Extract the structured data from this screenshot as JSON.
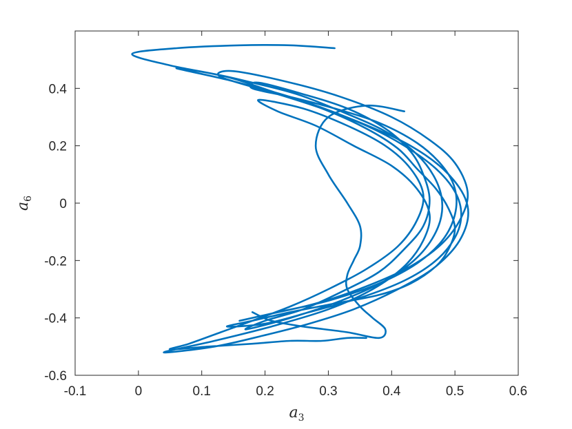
{
  "chart_data": {
    "type": "line",
    "title": "",
    "xlabel": "a",
    "xlabel_subscript": "3",
    "ylabel": "a",
    "ylabel_subscript": "6",
    "xlim": [
      -0.1,
      0.6
    ],
    "ylim": [
      -0.6,
      0.6
    ],
    "xticks": [
      -0.1,
      0,
      0.1,
      0.2,
      0.3,
      0.4,
      0.5,
      0.6
    ],
    "xtick_labels": [
      "-0.1",
      "0",
      "0.1",
      "0.2",
      "0.3",
      "0.4",
      "0.5",
      "0.6"
    ],
    "yticks": [
      -0.6,
      -0.4,
      -0.2,
      0,
      0.2,
      0.4
    ],
    "ytick_labels": [
      "-0.6",
      "-0.4",
      "-0.2",
      "0",
      "0.2",
      "0.4"
    ],
    "grid": false,
    "box": true,
    "line_color": "#0072BD",
    "series": [
      {
        "x": [
          0.31,
          0.24,
          0.16,
          0.06,
          -0.01,
          0.05,
          0.14,
          0.21,
          0.29,
          0.36,
          0.41,
          0.44,
          0.47,
          0.49,
          0.5,
          0.49,
          0.47,
          0.43,
          0.38,
          0.31,
          0.24,
          0.18,
          0.14,
          0.2,
          0.27,
          0.35,
          0.42,
          0.47,
          0.5,
          0.51,
          0.5,
          0.47,
          0.42,
          0.36,
          0.29,
          0.22,
          0.13,
          0.15,
          0.24,
          0.32,
          0.4,
          0.46,
          0.5,
          0.52,
          0.51,
          0.48,
          0.43,
          0.36,
          0.28,
          0.2,
          0.16,
          0.22,
          0.3,
          0.38,
          0.44,
          0.48,
          0.5,
          0.5,
          0.48,
          0.44,
          0.38,
          0.31,
          0.24,
          0.18,
          0.19,
          0.26,
          0.33,
          0.39,
          0.43,
          0.45,
          0.46,
          0.45,
          0.42,
          0.38,
          0.32,
          0.26,
          0.2,
          0.17,
          0.24,
          0.32,
          0.39,
          0.44,
          0.47,
          0.48,
          0.47,
          0.44,
          0.39,
          0.32,
          0.25,
          0.18,
          0.12,
          0.06,
          0.14,
          0.24,
          0.34,
          0.43,
          0.49,
          0.52,
          0.51,
          0.47,
          0.41,
          0.34,
          0.27,
          0.2,
          0.12,
          0.04,
          0.12,
          0.21,
          0.3,
          0.37,
          0.42,
          0.45,
          0.46,
          0.44,
          0.4,
          0.34,
          0.28,
          0.22,
          0.19,
          0.26,
          0.33,
          0.39,
          0.43,
          0.45,
          0.44,
          0.41,
          0.36,
          0.3,
          0.24,
          0.18,
          0.13,
          0.08,
          0.05,
          0.11,
          0.18,
          0.24,
          0.29,
          0.33,
          0.36
        ],
        "y": [
          0.54,
          0.55,
          0.55,
          0.54,
          0.52,
          0.48,
          0.44,
          0.39,
          0.33,
          0.26,
          0.19,
          0.12,
          0.05,
          -0.02,
          -0.09,
          -0.16,
          -0.22,
          -0.28,
          -0.32,
          -0.35,
          -0.38,
          -0.41,
          -0.43,
          -0.42,
          -0.38,
          -0.33,
          -0.27,
          -0.2,
          -0.12,
          -0.04,
          0.04,
          0.12,
          0.2,
          0.27,
          0.33,
          0.38,
          0.44,
          0.46,
          0.42,
          0.37,
          0.3,
          0.22,
          0.14,
          0.04,
          -0.05,
          -0.14,
          -0.22,
          -0.29,
          -0.35,
          -0.39,
          -0.41,
          -0.38,
          -0.34,
          -0.28,
          -0.21,
          -0.13,
          -0.04,
          0.05,
          0.13,
          0.21,
          0.28,
          0.33,
          0.37,
          0.4,
          0.42,
          0.38,
          0.33,
          0.26,
          0.18,
          0.1,
          0.01,
          -0.08,
          -0.16,
          -0.24,
          -0.31,
          -0.37,
          -0.41,
          -0.44,
          -0.4,
          -0.34,
          -0.27,
          -0.19,
          -0.1,
          -0.01,
          0.08,
          0.17,
          0.25,
          0.32,
          0.38,
          0.42,
          0.45,
          0.47,
          0.43,
          0.37,
          0.29,
          0.2,
          0.1,
          -0.01,
          -0.12,
          -0.22,
          -0.3,
          -0.37,
          -0.42,
          -0.46,
          -0.5,
          -0.52,
          -0.48,
          -0.43,
          -0.37,
          -0.3,
          -0.22,
          -0.13,
          -0.04,
          0.05,
          0.13,
          0.2,
          0.27,
          0.32,
          0.36,
          0.33,
          0.27,
          0.2,
          0.12,
          0.03,
          -0.06,
          -0.15,
          -0.23,
          -0.3,
          -0.36,
          -0.41,
          -0.45,
          -0.49,
          -0.51,
          -0.5,
          -0.49,
          -0.48,
          -0.48,
          -0.47,
          -0.47
        ]
      },
      {
        "x": [
          0.42,
          0.36,
          0.3,
          0.28,
          0.3,
          0.33,
          0.35,
          0.35,
          0.34,
          0.33,
          0.33,
          0.35,
          0.37,
          0.39,
          0.38,
          0.33,
          0.26,
          0.21,
          0.18
        ],
        "y": [
          0.32,
          0.34,
          0.3,
          0.2,
          0.1,
          0.0,
          -0.08,
          -0.15,
          -0.2,
          -0.25,
          -0.3,
          -0.36,
          -0.4,
          -0.44,
          -0.47,
          -0.45,
          -0.43,
          -0.41,
          -0.38
        ]
      }
    ]
  }
}
